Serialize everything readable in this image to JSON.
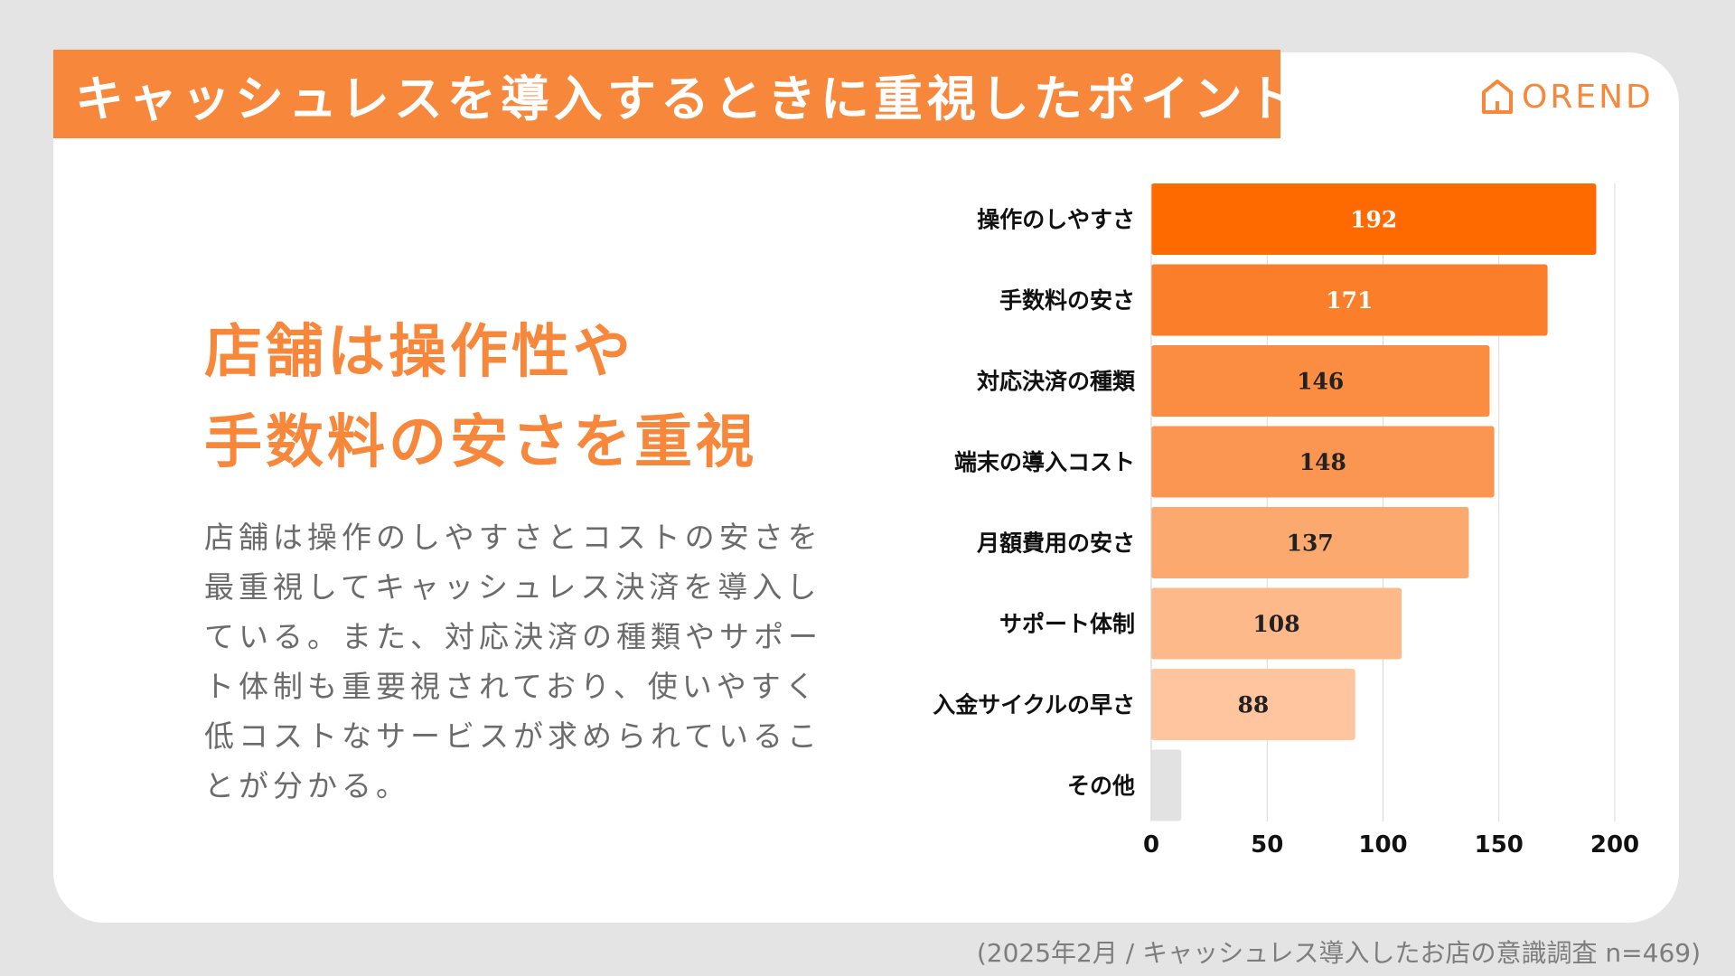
{
  "header": {
    "title": "キャッシュレスを導入するときに重視したポイント"
  },
  "logo": {
    "text": "OREND",
    "icon": "house-icon"
  },
  "headline": {
    "line1": "店舗は操作性や",
    "line2": "手数料の安さを重視"
  },
  "body": {
    "text": "店舗は操作のしやすさとコストの安さを最重視してキャッシュレス決済を導入している。また、対応決済の種類やサポート体制も重要視されており、使いやすく低コストなサービスが求められていることが分かる。"
  },
  "source": {
    "text": "(2025年2月 / キャッシュレス導入したお店の意識調査 n=469)"
  },
  "colors": {
    "accent": "#f7873a"
  },
  "chart_data": {
    "type": "bar",
    "orientation": "horizontal",
    "categories": [
      "操作のしやすさ",
      "手数料の安さ",
      "対応決済の種類",
      "端末の導入コスト",
      "月額費用の安さ",
      "サポート体制",
      "入金サイクルの早さ",
      "その他"
    ],
    "values": [
      192,
      171,
      146,
      148,
      137,
      108,
      88,
      13
    ],
    "labels": [
      "192",
      "171",
      "146",
      "148",
      "137",
      "108",
      "88",
      ""
    ],
    "colors": [
      "#ff6a00",
      "#fb7e2a",
      "#fb8d43",
      "#fb9652",
      "#fca96f",
      "#fdb98a",
      "#fec59f",
      "#e2e2e2"
    ],
    "label_colors": [
      "#ffffff",
      "#ffffff",
      "#222222",
      "#222222",
      "#222222",
      "#222222",
      "#222222",
      "#222222"
    ],
    "xlim": [
      0,
      200
    ],
    "xticks": [
      "0",
      "50",
      "100",
      "150",
      "200"
    ],
    "grid": true
  }
}
